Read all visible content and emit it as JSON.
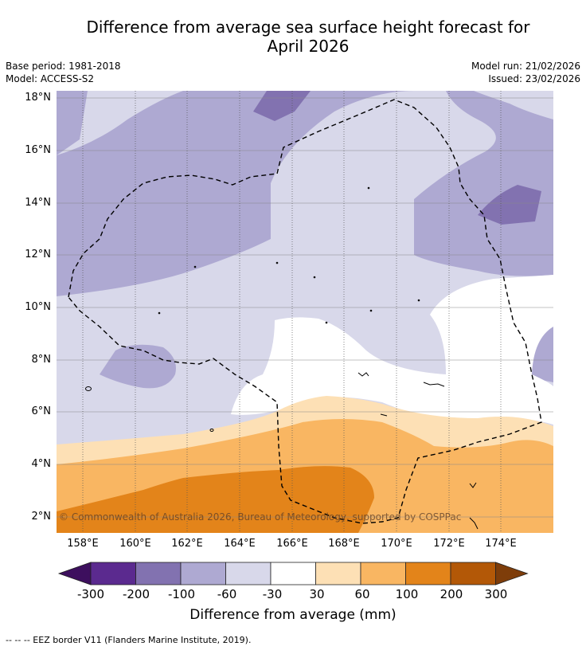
{
  "header": {
    "title_line1": "Difference from average sea surface height forecast for",
    "title_line2": "April 2026",
    "base_period": "Base period: 1981-2018",
    "model": "Model: ACCESS-S2",
    "model_run": "Model run: 21/02/2026",
    "issued": "Issued: 23/02/2026"
  },
  "map": {
    "latitude_labels": [
      "18°N",
      "16°N",
      "14°N",
      "12°N",
      "10°N",
      "8°N",
      "6°N",
      "4°N",
      "2°N"
    ],
    "longitude_labels": [
      "158°E",
      "160°E",
      "162°E",
      "164°E",
      "166°E",
      "168°E",
      "170°E",
      "172°E",
      "174°E"
    ],
    "copyright": "© Commonwealth of Australia 2026, Bureau of Meteorology, supported by COSPPac",
    "region": "EEZ (dashed outline)"
  },
  "colorbar": {
    "label": "Difference from average (mm)",
    "ticks": [
      "-300",
      "-200",
      "-100",
      "-60",
      "-30",
      "30",
      "60",
      "100",
      "200",
      "300"
    ],
    "colors": [
      "#3d0f5e",
      "#5b2a8f",
      "#8272b0",
      "#aea9d2",
      "#d8d8ea",
      "#ffffff",
      "#fde0b5",
      "#f9b662",
      "#e3841a",
      "#b35807",
      "#7e3d0a"
    ]
  },
  "legend": {
    "eez_note": "--  --  -- EEZ border V11 (Flanders Marine Institute, 2019)."
  }
}
